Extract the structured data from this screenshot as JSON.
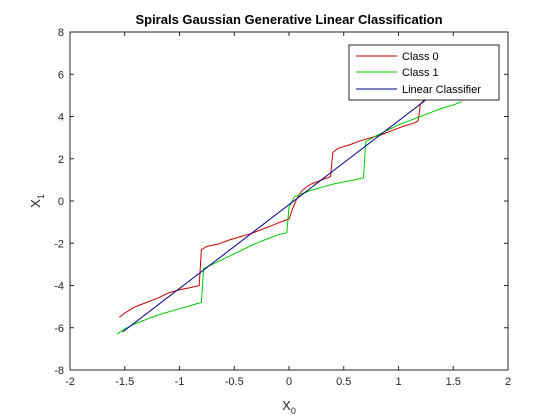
{
  "chart_data": {
    "type": "line",
    "title": "Spirals Gaussian Generative Linear Classification",
    "xlabel": {
      "main": "X",
      "sub": "0"
    },
    "ylabel": {
      "main": "X",
      "sub": "1"
    },
    "xlim": [
      -2,
      2
    ],
    "ylim": [
      -8,
      8
    ],
    "xticks": [
      -2,
      -1.5,
      -1,
      -0.5,
      0,
      0.5,
      1,
      1.5,
      2
    ],
    "yticks": [
      -8,
      -6,
      -4,
      -2,
      0,
      2,
      4,
      6,
      8
    ],
    "xtick_labels": [
      "-2",
      "-1.5",
      "-1",
      "-0.5",
      "0",
      "0.5",
      "1",
      "1.5",
      "2"
    ],
    "ytick_labels": [
      "-8",
      "-6",
      "-4",
      "-2",
      "0",
      "2",
      "4",
      "6",
      "8"
    ],
    "grid": false,
    "legend_position": "top-right",
    "series": [
      {
        "name": "Class 0",
        "color": "#cc0000",
        "points": [
          [
            -1.55,
            -5.5
          ],
          [
            -1.5,
            -5.3
          ],
          [
            -1.4,
            -5.0
          ],
          [
            -1.3,
            -4.8
          ],
          [
            -1.2,
            -4.6
          ],
          [
            -1.1,
            -4.35
          ],
          [
            -1.0,
            -4.2
          ],
          [
            -0.9,
            -4.1
          ],
          [
            -0.82,
            -4.0
          ],
          [
            -0.8,
            -2.3
          ],
          [
            -0.75,
            -2.15
          ],
          [
            -0.65,
            -2.05
          ],
          [
            -0.55,
            -1.85
          ],
          [
            -0.45,
            -1.7
          ],
          [
            -0.35,
            -1.55
          ],
          [
            -0.25,
            -1.35
          ],
          [
            -0.15,
            -1.15
          ],
          [
            -0.08,
            -1.0
          ],
          [
            0.0,
            -0.85
          ],
          [
            0.03,
            -0.4
          ],
          [
            0.07,
            0.1
          ],
          [
            0.12,
            0.5
          ],
          [
            0.2,
            0.8
          ],
          [
            0.3,
            1.0
          ],
          [
            0.38,
            1.15
          ],
          [
            0.4,
            2.3
          ],
          [
            0.45,
            2.5
          ],
          [
            0.55,
            2.65
          ],
          [
            0.65,
            2.85
          ],
          [
            0.75,
            3.0
          ],
          [
            0.85,
            3.15
          ],
          [
            0.95,
            3.35
          ],
          [
            1.05,
            3.55
          ],
          [
            1.15,
            3.7
          ],
          [
            1.18,
            3.8
          ],
          [
            1.2,
            4.6
          ],
          [
            1.28,
            5.0
          ]
        ]
      },
      {
        "name": "Class 1",
        "color": "#00cc00",
        "points": [
          [
            -1.57,
            -6.3
          ],
          [
            -1.5,
            -6.05
          ],
          [
            -1.4,
            -5.8
          ],
          [
            -1.3,
            -5.6
          ],
          [
            -1.2,
            -5.4
          ],
          [
            -1.1,
            -5.25
          ],
          [
            -1.0,
            -5.1
          ],
          [
            -0.9,
            -4.95
          ],
          [
            -0.8,
            -4.8
          ],
          [
            -0.78,
            -3.2
          ],
          [
            -0.7,
            -3.0
          ],
          [
            -0.6,
            -2.75
          ],
          [
            -0.5,
            -2.5
          ],
          [
            -0.4,
            -2.25
          ],
          [
            -0.3,
            -2.0
          ],
          [
            -0.2,
            -1.8
          ],
          [
            -0.1,
            -1.6
          ],
          [
            -0.02,
            -1.5
          ],
          [
            0.0,
            -0.3
          ],
          [
            0.05,
            0.2
          ],
          [
            0.12,
            0.35
          ],
          [
            0.2,
            0.5
          ],
          [
            0.3,
            0.65
          ],
          [
            0.4,
            0.8
          ],
          [
            0.5,
            0.9
          ],
          [
            0.6,
            1.0
          ],
          [
            0.68,
            1.1
          ],
          [
            0.7,
            2.8
          ],
          [
            0.8,
            3.1
          ],
          [
            0.9,
            3.35
          ],
          [
            1.0,
            3.6
          ],
          [
            1.1,
            3.8
          ],
          [
            1.2,
            4.0
          ],
          [
            1.3,
            4.2
          ],
          [
            1.4,
            4.4
          ],
          [
            1.5,
            4.55
          ],
          [
            1.58,
            4.7
          ]
        ]
      },
      {
        "name": "Linear Classifier",
        "color": "#00008b",
        "points": [
          [
            -1.52,
            -6.2
          ],
          [
            1.38,
            5.3
          ]
        ]
      }
    ]
  }
}
